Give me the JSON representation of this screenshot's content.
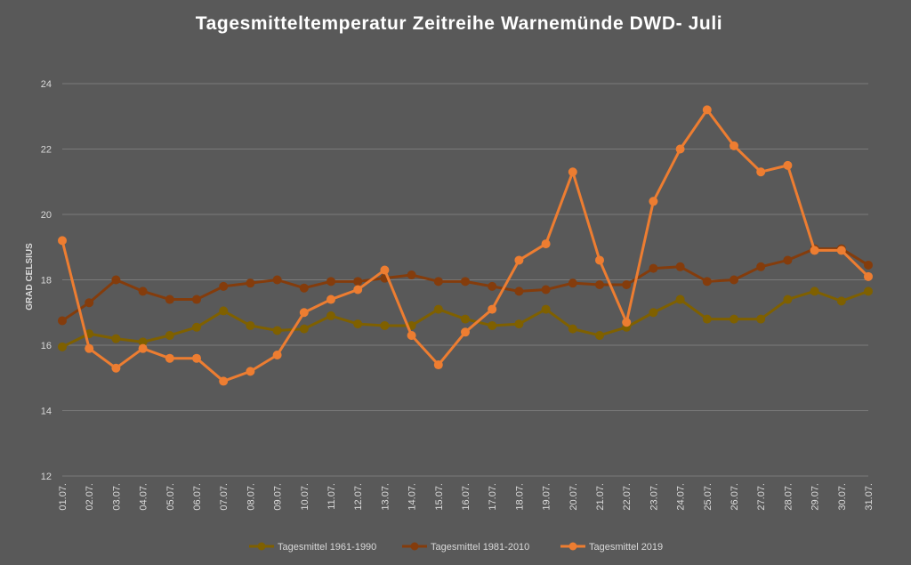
{
  "chart_data": {
    "type": "line",
    "title": "Tagesmitteltemperatur  Zeitreihe Warnemünde DWD- Juli",
    "xlabel": "",
    "ylabel": "GRAD CELSIUS",
    "ylim": [
      12,
      24
    ],
    "yticks": [
      12,
      14,
      16,
      18,
      20,
      22,
      24
    ],
    "grid": true,
    "legend_position": "bottom",
    "categories": [
      "01.07.",
      "02.07.",
      "03.07.",
      "04.07.",
      "05.07.",
      "06.07.",
      "07.07.",
      "08.07.",
      "09.07.",
      "10.07.",
      "11.07.",
      "12.07.",
      "13.07.",
      "14.07.",
      "15.07.",
      "16.07.",
      "17.07.",
      "18.07.",
      "19.07.",
      "20.07.",
      "21.07.",
      "22.07.",
      "23.07.",
      "24.07.",
      "25.07.",
      "26.07.",
      "27.07.",
      "28.07.",
      "29.07.",
      "30.07.",
      "31.07."
    ],
    "series": [
      {
        "name": "Tagesmittel 1961-1990",
        "color": "#7f6000",
        "values": [
          15.95,
          16.35,
          16.2,
          16.1,
          16.3,
          16.55,
          17.05,
          16.6,
          16.45,
          16.5,
          16.9,
          16.65,
          16.6,
          16.6,
          17.1,
          16.8,
          16.6,
          16.65,
          17.1,
          16.5,
          16.3,
          16.55,
          17.0,
          17.4,
          16.8,
          16.8,
          16.8,
          17.4,
          17.65,
          17.35,
          17.65
        ]
      },
      {
        "name": "Tagesmittel 1981-2010",
        "color": "#843c0c",
        "values": [
          16.75,
          17.3,
          18.0,
          17.65,
          17.4,
          17.4,
          17.8,
          17.9,
          18.0,
          17.75,
          17.95,
          17.95,
          18.05,
          18.15,
          17.95,
          17.95,
          17.8,
          17.65,
          17.7,
          17.9,
          17.85,
          17.85,
          18.35,
          18.4,
          17.95,
          18.0,
          18.4,
          18.6,
          18.95,
          18.95,
          18.45
        ]
      },
      {
        "name": "Tagesmittel 2019",
        "color": "#ed7d31",
        "values": [
          19.2,
          15.9,
          15.3,
          15.9,
          15.6,
          15.6,
          14.9,
          15.2,
          15.7,
          17.0,
          17.4,
          17.7,
          18.3,
          16.3,
          15.4,
          16.4,
          17.1,
          18.6,
          19.1,
          21.3,
          18.6,
          16.7,
          20.4,
          22.0,
          23.2,
          22.1,
          21.3,
          21.5,
          18.9,
          18.9,
          18.1
        ]
      }
    ]
  }
}
